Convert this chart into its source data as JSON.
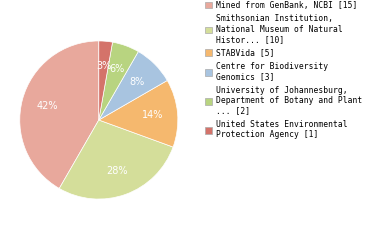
{
  "labels": [
    "Mined from GenBank, NCBI [15]",
    "Smithsonian Institution,\nNational Museum of Natural\nHistor... [10]",
    "STABVida [5]",
    "Centre for Biodiversity\nGenomics [3]",
    "University of Johannesburg,\nDepartment of Botany and Plant\n... [2]",
    "United States Environmental\nProtection Agency [1]"
  ],
  "values": [
    15,
    10,
    5,
    3,
    2,
    1
  ],
  "colors": [
    "#e8a89c",
    "#d4de9a",
    "#f5b86e",
    "#a8c4e0",
    "#b8d480",
    "#d4736a"
  ],
  "startangle": 90,
  "figsize": [
    3.8,
    2.4
  ],
  "dpi": 100
}
